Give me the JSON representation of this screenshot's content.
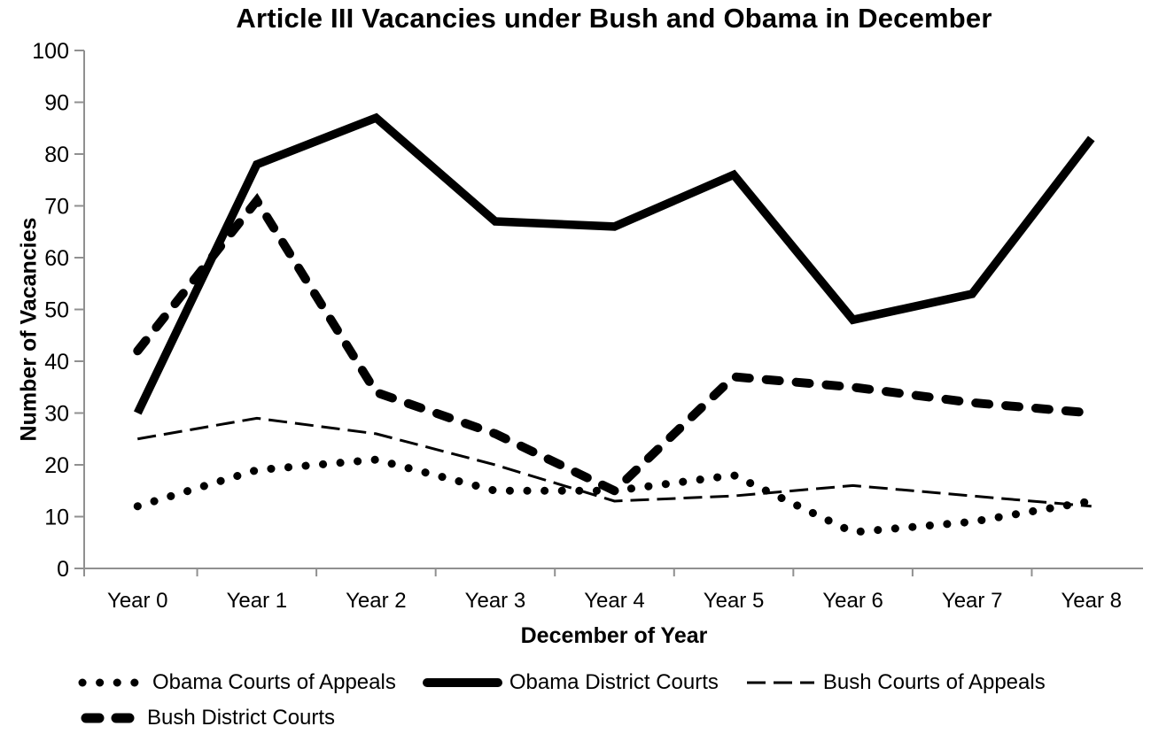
{
  "chart_data": {
    "type": "line",
    "title": "Article III Vacancies under Bush and Obama in December",
    "xlabel": "December of Year",
    "ylabel": "Number of Vacancies",
    "ylim": [
      0,
      100
    ],
    "yticks": [
      0,
      10,
      20,
      30,
      40,
      50,
      60,
      70,
      80,
      90,
      100
    ],
    "grid": false,
    "legend_position": "bottom",
    "categories": [
      "Year 0",
      "Year 1",
      "Year 2",
      "Year 3",
      "Year 4",
      "Year 5",
      "Year 6",
      "Year 7",
      "Year 8"
    ],
    "series": [
      {
        "name": "Obama Courts of Appeals",
        "style": "dotted",
        "values": [
          12,
          19,
          21,
          15,
          15,
          18,
          7,
          9,
          13
        ]
      },
      {
        "name": "Obama District Courts",
        "style": "solid-thick",
        "values": [
          30,
          78,
          87,
          67,
          66,
          76,
          48,
          53,
          83
        ]
      },
      {
        "name": "Bush Courts of Appeals",
        "style": "dashed-thin",
        "values": [
          25,
          29,
          26,
          20,
          13,
          14,
          16,
          14,
          12
        ]
      },
      {
        "name": "Bush District Courts",
        "style": "dashed-thick",
        "values": [
          42,
          71,
          34,
          26,
          15,
          37,
          35,
          32,
          30
        ]
      }
    ],
    "legend_rows": [
      [
        0,
        1,
        2
      ],
      [
        3
      ]
    ],
    "colors": {
      "line": "#000000",
      "axis": "#909090",
      "text": "#000000",
      "background": "#ffffff"
    }
  }
}
